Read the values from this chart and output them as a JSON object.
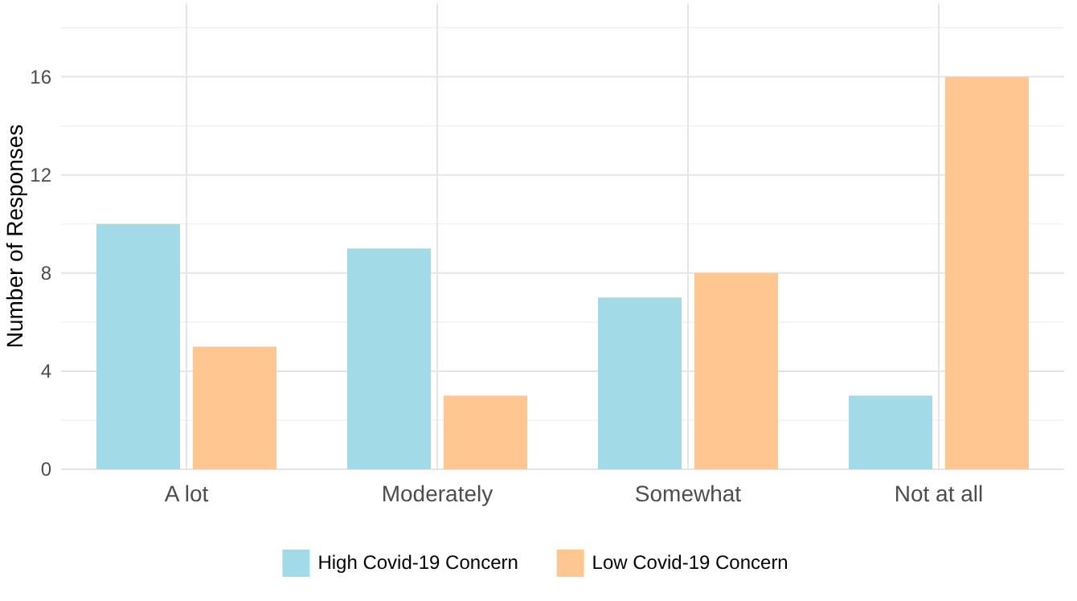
{
  "chart_data": {
    "type": "bar",
    "ylabel": "Number of Responses",
    "categories": [
      "A lot",
      "Moderately",
      "Somewhat",
      "Not at all"
    ],
    "series": [
      {
        "name": "High Covid-19 Concern",
        "color": "#a2dae7",
        "values": [
          10,
          9,
          7,
          3
        ]
      },
      {
        "name": "Low Covid-19 Concern",
        "color": "#fec792",
        "values": [
          5,
          3,
          8,
          16
        ]
      }
    ],
    "ylim": [
      0,
      19
    ],
    "yticks": [
      0,
      4,
      8,
      12,
      16
    ],
    "grid": true,
    "legend": "bottom"
  }
}
